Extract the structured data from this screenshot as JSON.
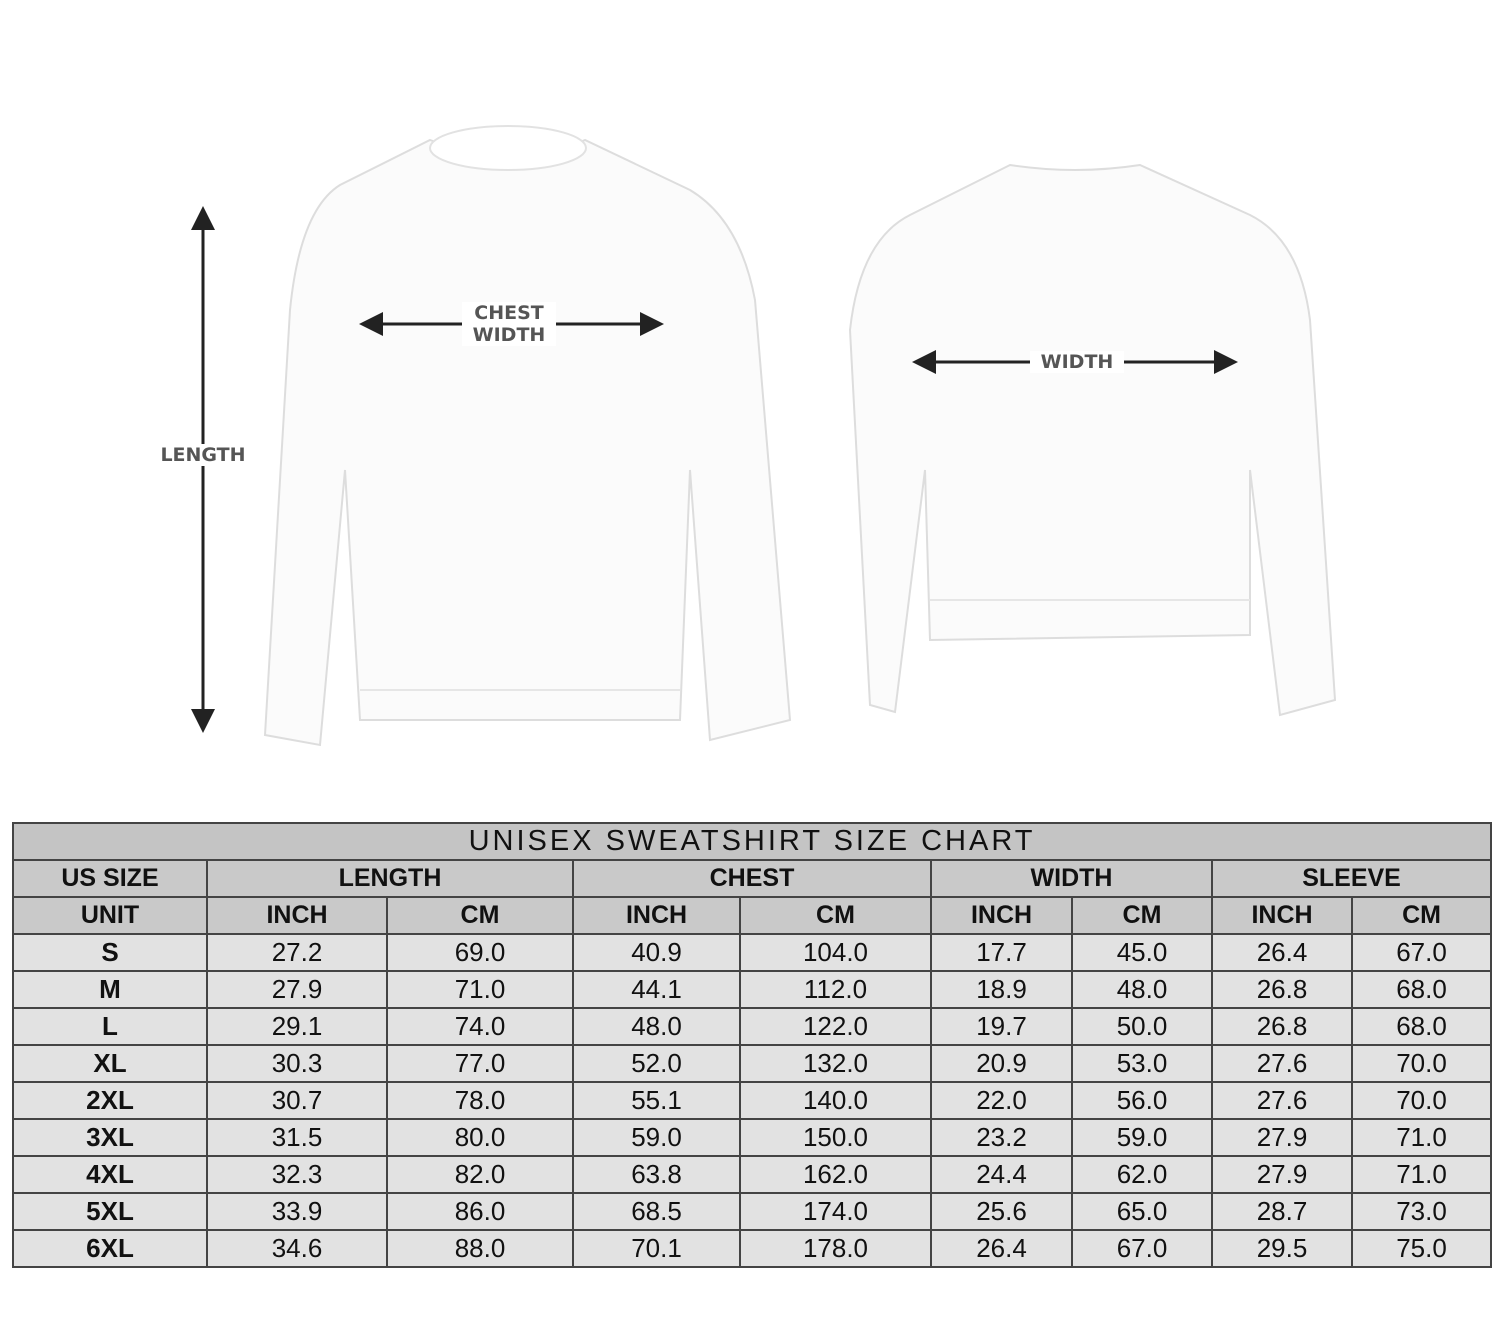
{
  "illustration": {
    "front_labels": {
      "length": "LENGTH",
      "chest_width_line1": "CHEST",
      "chest_width_line2": "WIDTH"
    },
    "back_labels": {
      "width": "WIDTH"
    }
  },
  "table": {
    "title": "UNISEX SWEATSHIRT SIZE CHART",
    "group_headers": [
      "US SIZE",
      "LENGTH",
      "CHEST",
      "WIDTH",
      "SLEEVE"
    ],
    "unit_row": [
      "UNIT",
      "INCH",
      "CM",
      "INCH",
      "CM",
      "INCH",
      "CM",
      "INCH",
      "CM"
    ],
    "rows": [
      [
        "S",
        "27.2",
        "69.0",
        "40.9",
        "104.0",
        "17.7",
        "45.0",
        "26.4",
        "67.0"
      ],
      [
        "M",
        "27.9",
        "71.0",
        "44.1",
        "112.0",
        "18.9",
        "48.0",
        "26.8",
        "68.0"
      ],
      [
        "L",
        "29.1",
        "74.0",
        "48.0",
        "122.0",
        "19.7",
        "50.0",
        "26.8",
        "68.0"
      ],
      [
        "XL",
        "30.3",
        "77.0",
        "52.0",
        "132.0",
        "20.9",
        "53.0",
        "27.6",
        "70.0"
      ],
      [
        "2XL",
        "30.7",
        "78.0",
        "55.1",
        "140.0",
        "22.0",
        "56.0",
        "27.6",
        "70.0"
      ],
      [
        "3XL",
        "31.5",
        "80.0",
        "59.0",
        "150.0",
        "23.2",
        "59.0",
        "27.9",
        "71.0"
      ],
      [
        "4XL",
        "32.3",
        "82.0",
        "63.8",
        "162.0",
        "24.4",
        "62.0",
        "27.9",
        "71.0"
      ],
      [
        "5XL",
        "33.9",
        "86.0",
        "68.5",
        "174.0",
        "25.6",
        "65.0",
        "28.7",
        "73.0"
      ],
      [
        "6XL",
        "34.6",
        "88.0",
        "70.1",
        "178.0",
        "26.4",
        "67.0",
        "29.5",
        "75.0"
      ]
    ]
  }
}
